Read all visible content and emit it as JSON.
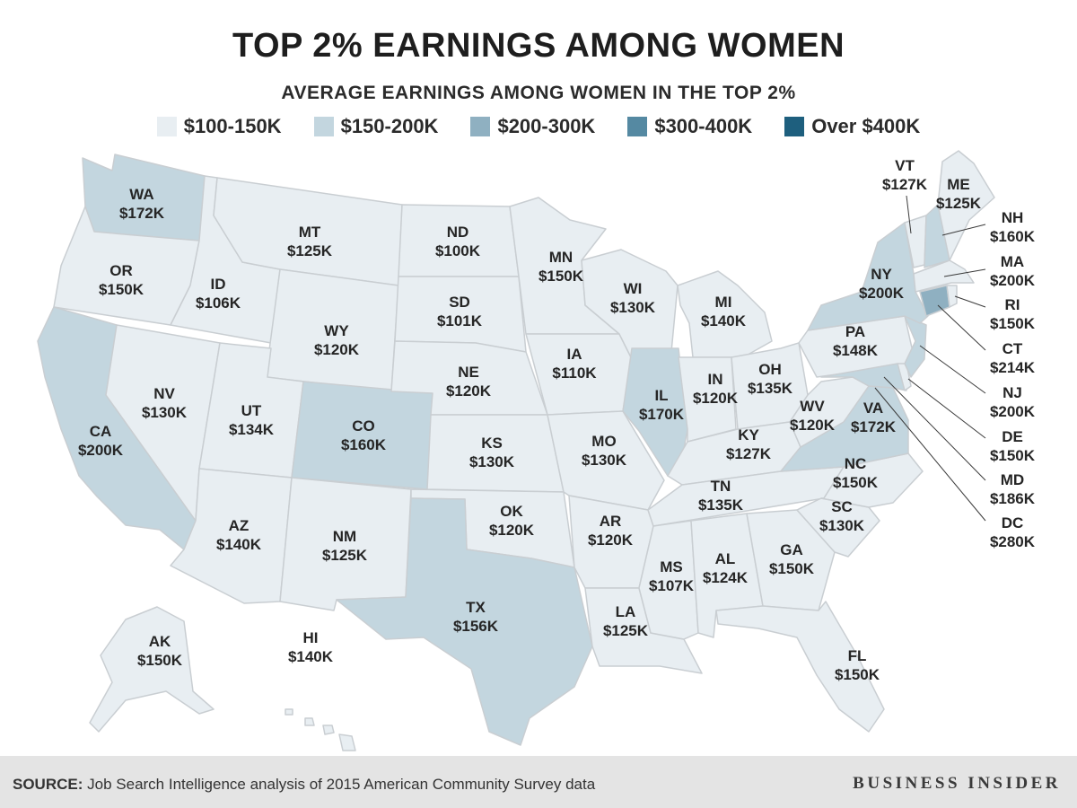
{
  "title": "TOP 2% EARNINGS AMONG WOMEN",
  "subtitle": "AVERAGE EARNINGS AMONG WOMEN IN THE TOP 2%",
  "legend": [
    {
      "label": "$100-150K",
      "color": "#e8eef2"
    },
    {
      "label": "$150-200K",
      "color": "#c3d6df"
    },
    {
      "label": "$200-300K",
      "color": "#8fb0c1"
    },
    {
      "label": "$300-400K",
      "color": "#5589a2"
    },
    {
      "label": "Over $400K",
      "color": "#1e5f7e"
    }
  ],
  "colors": {
    "bin1": "#e8eef2",
    "bin2": "#c3d6df",
    "bin3": "#8fb0c1",
    "border": "#c9ced2"
  },
  "states": {
    "WA": "$172K",
    "OR": "$150K",
    "CA": "$200K",
    "ID": "$106K",
    "NV": "$130K",
    "MT": "$125K",
    "WY": "$120K",
    "UT": "$134K",
    "AZ": "$140K",
    "CO": "$160K",
    "NM": "$125K",
    "ND": "$100K",
    "SD": "$101K",
    "NE": "$120K",
    "KS": "$130K",
    "OK": "$120K",
    "TX": "$156K",
    "MN": "$150K",
    "IA": "$110K",
    "MO": "$130K",
    "AR": "$120K",
    "LA": "$125K",
    "WI": "$130K",
    "IL": "$170K",
    "MI": "$140K",
    "IN": "$120K",
    "OH": "$135K",
    "KY": "$127K",
    "TN": "$135K",
    "MS": "$107K",
    "AL": "$124K",
    "GA": "$150K",
    "FL": "$150K",
    "SC": "$130K",
    "NC": "$150K",
    "VA": "$172K",
    "WV": "$120K",
    "PA": "$148K",
    "NY": "$200K",
    "VT": "$127K",
    "ME": "$125K",
    "NH": "$160K",
    "MA": "$200K",
    "RI": "$150K",
    "CT": "$214K",
    "NJ": "$200K",
    "DE": "$150K",
    "MD": "$186K",
    "DC": "$280K",
    "AK": "$150K",
    "HI": "$140K"
  },
  "footer": {
    "source_label": "SOURCE:",
    "source_text": "Job Search Intelligence analysis of 2015 American Community Survey data",
    "brand": "BUSINESS INSIDER"
  }
}
